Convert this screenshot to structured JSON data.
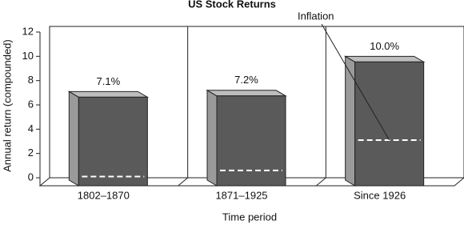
{
  "chart_data": {
    "type": "bar3d",
    "title": "US Stock Returns",
    "ylabel": "Annual return (compounded)",
    "xlabel": "Time period",
    "categories": [
      "1802–1870",
      "1871–1925",
      "Since 1926"
    ],
    "values": [
      7.1,
      7.2,
      10.0
    ],
    "value_labels": [
      "7.1%",
      "7.2%",
      "10.0%"
    ],
    "color": "#5a5a5a",
    "inflation": {
      "label": "Inflation",
      "values": [
        0.1,
        0.6,
        3.1
      ]
    },
    "ylim": [
      0,
      12
    ],
    "yticks": [
      0,
      2,
      4,
      6,
      8,
      10,
      12
    ],
    "grid": true
  }
}
